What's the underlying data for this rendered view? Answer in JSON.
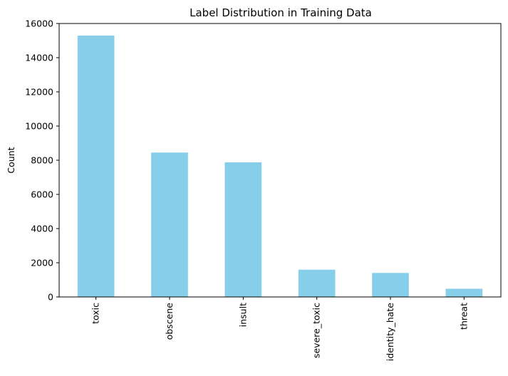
{
  "chart_data": {
    "type": "bar",
    "title": "Label Distribution in Training Data",
    "xlabel": "",
    "ylabel": "Count",
    "categories": [
      "toxic",
      "obscene",
      "insult",
      "severe_toxic",
      "identity_hate",
      "threat"
    ],
    "values": [
      15294,
      8449,
      7877,
      1595,
      1405,
      478
    ],
    "ylim": [
      0,
      16000
    ],
    "yticks": [
      0,
      2000,
      4000,
      6000,
      8000,
      10000,
      12000,
      14000,
      16000
    ],
    "bar_color": "#87ceeb",
    "grid": false,
    "legend": "none"
  }
}
